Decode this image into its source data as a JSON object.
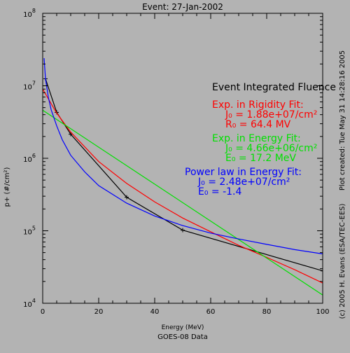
{
  "chart_data": {
    "type": "line",
    "title": "Event: 27-Jan-2002",
    "subtitle": "GOES-08 Data",
    "xlabel": "Energy (MeV)",
    "ylabel": "p+ (#/cm²)",
    "xlim": [
      0,
      100
    ],
    "ylim": [
      10000,
      100000000
    ],
    "yscale": "log",
    "x_ticks": [
      "0",
      "20",
      "40",
      "60",
      "80",
      "100"
    ],
    "y_ticks": [
      {
        "base": "10",
        "exp": "4",
        "value": 10000
      },
      {
        "base": "10",
        "exp": "5",
        "value": 100000
      },
      {
        "base": "10",
        "exp": "6",
        "value": 1000000
      },
      {
        "base": "10",
        "exp": "7",
        "value": 10000000
      },
      {
        "base": "10",
        "exp": "8",
        "value": 100000000
      }
    ],
    "grid": false,
    "right_side_text": "Plot created: Tue May 31 14:28:16 2005",
    "right_side_credit": "(c) 2005 H. Evans (ESA/TEC-EES)",
    "annotations": {
      "heading": "Event Integrated Fluence",
      "rigidity_title": "Exp. in Rigidity Fit:",
      "rigidity_j": "J₀ = 1.88e+07/cm²",
      "rigidity_r": "R₀ =  64.4 MV",
      "energy_title": "Exp. in Energy Fit:",
      "energy_j": "J₀ = 4.66e+06/cm²",
      "energy_e": "E₀ =  17.2 MeV",
      "power_title": "Power law in Energy Fit:",
      "power_j": "J₀ = 2.48e+07/cm²",
      "power_e": "E₀ =  -1.4"
    },
    "series": [
      {
        "color": "#000000",
        "markers": true,
        "x": [
          1,
          5,
          10,
          30,
          50,
          100
        ],
        "y": [
          12500000,
          4300000,
          2150000,
          290000,
          102000,
          28000
        ]
      },
      {
        "color": "#ff0000",
        "markers": false,
        "x": [
          0,
          5,
          10,
          20,
          30,
          40,
          50,
          60,
          70,
          80,
          90,
          100
        ],
        "y": [
          9000000,
          4200000,
          2300000,
          900000,
          450000,
          250000,
          150000,
          97000,
          63000,
          43000,
          29000,
          19000
        ]
      },
      {
        "color": "#00e000",
        "markers": false,
        "x": [
          0,
          100
        ],
        "y": [
          4600000,
          13000
        ]
      },
      {
        "color": "#0000ff",
        "markers": false,
        "x": [
          0.5,
          1,
          2,
          3,
          5,
          7,
          10,
          15,
          20,
          30,
          40,
          50,
          60,
          70,
          80,
          90,
          100
        ],
        "y": [
          24000000,
          12500000,
          7000000,
          4700000,
          2800000,
          1800000,
          1100000,
          650000,
          420000,
          240000,
          160000,
          118000,
          93000,
          77000,
          65000,
          55000,
          48000
        ]
      }
    ]
  }
}
